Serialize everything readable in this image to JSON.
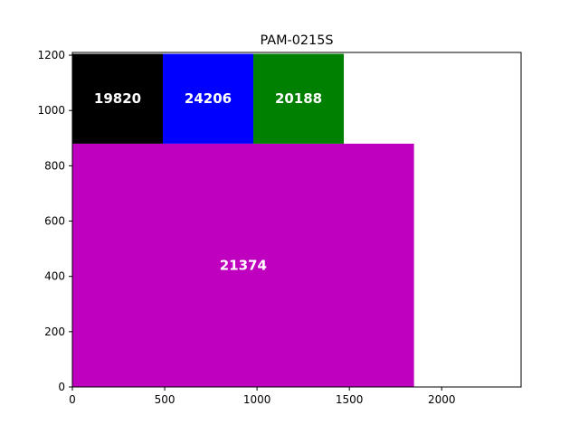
{
  "chart_data": {
    "type": "rectangle-packing",
    "title": "PAM-0215S",
    "xlabel": "",
    "ylabel": "",
    "xlim": [
      0,
      2430
    ],
    "ylim": [
      0,
      1210
    ],
    "xticks": [
      0,
      500,
      1000,
      1500,
      2000
    ],
    "yticks": [
      0,
      200,
      400,
      600,
      800,
      1000,
      1200
    ],
    "grid": false,
    "blocks": [
      {
        "label": "21374",
        "x0": 0,
        "y0": 0,
        "x1": 1850,
        "y1": 880,
        "color": "#bf00bf"
      },
      {
        "label": "19820",
        "x0": 0,
        "y0": 880,
        "x1": 490,
        "y1": 1205,
        "color": "#000000"
      },
      {
        "label": "24206",
        "x0": 490,
        "y0": 880,
        "x1": 980,
        "y1": 1205,
        "color": "#0000ff"
      },
      {
        "label": "20188",
        "x0": 980,
        "y0": 880,
        "x1": 1470,
        "y1": 1205,
        "color": "#008000"
      }
    ]
  }
}
